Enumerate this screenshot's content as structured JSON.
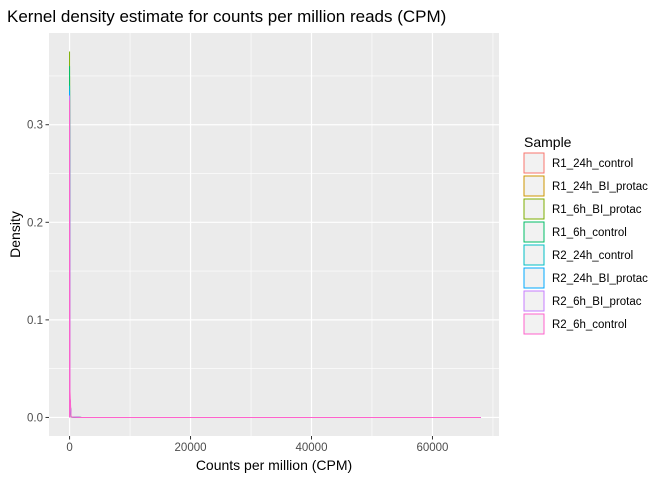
{
  "chart_data": {
    "type": "density",
    "title": "Kernel density estimate for counts per million reads (CPM)",
    "xlabel": "Counts per million (CPM)",
    "ylabel": "Density",
    "xlim": [
      -3400,
      71000
    ],
    "ylim": [
      -0.019,
      0.394
    ],
    "xticks": [
      0,
      20000,
      40000,
      60000
    ],
    "xtick_labels": [
      "0",
      "20000",
      "40000",
      "60000"
    ],
    "yticks": [
      0.0,
      0.1,
      0.2,
      0.3
    ],
    "ytick_labels": [
      "0.0",
      "0.1",
      "0.2",
      "0.3"
    ],
    "grid": true,
    "legend": {
      "title": "Sample",
      "position": "right"
    },
    "series": [
      {
        "name": "R1_24h_control",
        "color": "#F8766D",
        "x": [
          0,
          0,
          60,
          250,
          2000,
          68000
        ],
        "y": [
          0,
          0.33,
          0.02,
          0.0005,
          2e-05,
          0
        ]
      },
      {
        "name": "R1_24h_BI_protac",
        "color": "#CD9600",
        "x": [
          0,
          0,
          60,
          250,
          2000,
          68000
        ],
        "y": [
          0,
          0.35,
          0.02,
          0.0005,
          2e-05,
          0
        ]
      },
      {
        "name": "R1_6h_BI_protac",
        "color": "#7CAE00",
        "x": [
          0,
          0,
          60,
          250,
          2000,
          68000
        ],
        "y": [
          0,
          0.375,
          0.02,
          0.0005,
          2e-05,
          0
        ]
      },
      {
        "name": "R1_6h_control",
        "color": "#00BE67",
        "x": [
          0,
          0,
          60,
          250,
          2000,
          68000
        ],
        "y": [
          0,
          0.36,
          0.02,
          0.0005,
          2e-05,
          0
        ]
      },
      {
        "name": "R2_24h_control",
        "color": "#00BFC4",
        "x": [
          0,
          0,
          60,
          250,
          2000,
          68000
        ],
        "y": [
          0,
          0.34,
          0.02,
          0.0005,
          2e-05,
          0
        ]
      },
      {
        "name": "R2_24h_BI_protac",
        "color": "#00A9FF",
        "x": [
          0,
          0,
          60,
          250,
          2000,
          68000
        ],
        "y": [
          0,
          0.335,
          0.02,
          0.0005,
          2e-05,
          0
        ]
      },
      {
        "name": "R2_6h_BI_protac",
        "color": "#C77CFF",
        "x": [
          0,
          0,
          60,
          250,
          2000,
          68000
        ],
        "y": [
          0,
          0.33,
          0.02,
          0.0005,
          2e-05,
          0
        ]
      },
      {
        "name": "R2_6h_control",
        "color": "#FF61CC",
        "x": [
          0,
          0,
          60,
          250,
          2000,
          68000
        ],
        "y": [
          0,
          0.325,
          0.028,
          0.0005,
          2e-05,
          0
        ]
      }
    ]
  }
}
